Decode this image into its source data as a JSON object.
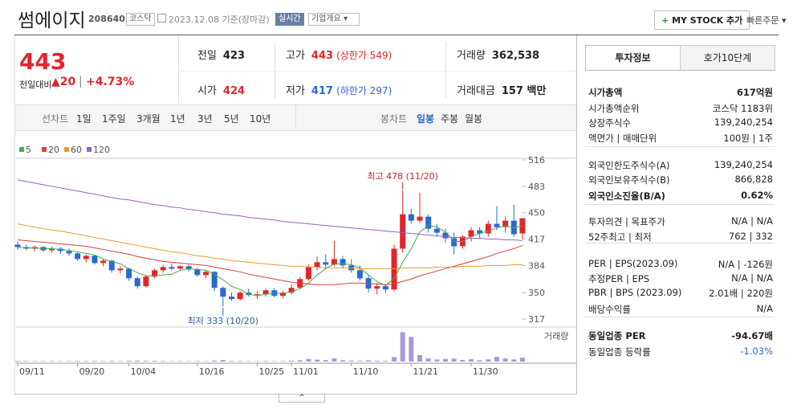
{
  "header": {
    "name": "썸에이지",
    "code": "208640",
    "market": "코스닥",
    "date": "2023.12.08 기준(장마감)",
    "realtime": "실시간",
    "overview": "기업개요",
    "mystock": "MY STOCK 추가",
    "quick_order": "빠른주문"
  },
  "price": {
    "current": "443",
    "change_label": "전일대비",
    "change": "20",
    "change_pct": "+4.73%"
  },
  "quotes": [
    [
      {
        "label": "전일",
        "value": "423"
      },
      {
        "label": "고가",
        "value": "443",
        "note": "(상한가 549)"
      },
      {
        "label": "거래량",
        "value": "362,538"
      }
    ],
    [
      {
        "label": "시가",
        "value": "424"
      },
      {
        "label": "저가",
        "value": "417",
        "note": "(하한가 297)"
      },
      {
        "label": "거래대금",
        "value": "157 백만"
      }
    ]
  ],
  "periods": {
    "line": [
      "선차트",
      "1일",
      "1주일",
      "3개월",
      "1년",
      "3년",
      "5년",
      "10년"
    ],
    "candle": [
      "봉차트",
      "일봉",
      "주봉",
      "월봉"
    ]
  },
  "chart": {
    "type": "candlestick",
    "up_color": "#e0262c",
    "down_color": "#2a68d2",
    "volume_color": "#a99ad6",
    "volume_label": "거래량",
    "high_note": "최고 478 (11/20)",
    "low_note": "최저 333 (10/20)",
    "ylim": [
      310,
      522
    ],
    "yticks": [
      516,
      483,
      450,
      417,
      384,
      350,
      317
    ],
    "vlim": [
      0,
      3000000
    ],
    "categories": [
      "09/11",
      null,
      null,
      null,
      null,
      null,
      null,
      "09/20",
      null,
      null,
      null,
      null,
      null,
      "10/04",
      null,
      null,
      null,
      null,
      null,
      null,
      null,
      "10/16",
      null,
      null,
      null,
      null,
      null,
      null,
      "10/25",
      null,
      null,
      null,
      "11/01",
      null,
      null,
      null,
      null,
      null,
      null,
      "11/10",
      null,
      null,
      null,
      null,
      null,
      null,
      "11/21",
      null,
      null,
      null,
      null,
      null,
      null,
      "11/30",
      null,
      null,
      null,
      null,
      null,
      null
    ],
    "open": [
      410,
      407,
      405,
      407,
      403,
      405,
      402,
      399,
      392,
      396,
      387,
      390,
      378,
      380,
      368,
      358,
      370,
      378,
      382,
      380,
      383,
      379,
      372,
      376,
      356,
      345,
      342,
      350,
      347,
      348,
      353,
      346,
      350,
      356,
      367,
      382,
      388,
      385,
      392,
      384,
      378,
      368,
      355,
      358,
      354,
      405,
      448,
      440,
      445,
      430,
      425,
      418,
      408,
      420,
      428,
      424,
      436,
      432,
      440,
      424
    ],
    "high": [
      414,
      410,
      409,
      408,
      408,
      407,
      405,
      401,
      398,
      397,
      392,
      391,
      383,
      381,
      370,
      372,
      380,
      385,
      386,
      384,
      385,
      381,
      378,
      377,
      358,
      350,
      352,
      355,
      352,
      355,
      356,
      352,
      360,
      370,
      385,
      395,
      398,
      415,
      396,
      392,
      384,
      372,
      362,
      360,
      410,
      478,
      455,
      475,
      448,
      436,
      430,
      425,
      422,
      432,
      432,
      440,
      458,
      445,
      460,
      443
    ],
    "low": [
      404,
      403,
      402,
      401,
      400,
      398,
      396,
      390,
      388,
      385,
      383,
      375,
      374,
      365,
      355,
      356,
      368,
      375,
      378,
      377,
      376,
      370,
      368,
      352,
      333,
      340,
      340,
      345,
      342,
      345,
      344,
      343,
      348,
      354,
      365,
      378,
      380,
      383,
      380,
      375,
      365,
      350,
      348,
      350,
      352,
      400,
      436,
      437,
      425,
      420,
      412,
      398,
      405,
      414,
      418,
      420,
      428,
      425,
      420,
      417
    ],
    "close": [
      407,
      405,
      407,
      403,
      405,
      402,
      399,
      392,
      396,
      387,
      390,
      378,
      380,
      368,
      358,
      370,
      378,
      382,
      380,
      383,
      379,
      372,
      376,
      356,
      345,
      342,
      350,
      347,
      348,
      353,
      346,
      350,
      356,
      367,
      382,
      388,
      385,
      392,
      384,
      378,
      368,
      355,
      358,
      354,
      405,
      448,
      440,
      445,
      430,
      425,
      418,
      408,
      420,
      428,
      424,
      436,
      432,
      440,
      423,
      443
    ],
    "volume": [
      60000,
      50000,
      40000,
      45000,
      50000,
      40000,
      45000,
      60000,
      50000,
      55000,
      50000,
      70000,
      45000,
      80000,
      90000,
      60000,
      70000,
      50000,
      40000,
      45000,
      40000,
      50000,
      45000,
      90000,
      150000,
      60000,
      50000,
      45000,
      40000,
      50000,
      45000,
      50000,
      80000,
      120000,
      250000,
      180000,
      140000,
      300000,
      120000,
      90000,
      80000,
      110000,
      70000,
      60000,
      420000,
      2750000,
      2300000,
      600000,
      300000,
      200000,
      250000,
      280000,
      150000,
      220000,
      120000,
      200000,
      450000,
      300000,
      200000,
      362538
    ],
    "series": [
      {
        "name": "5",
        "color": "#3cb043",
        "values": [
          407,
          406,
          406,
          405,
          405,
          404,
          403,
          401,
          399,
          397,
          392,
          389,
          386,
          380,
          375,
          371,
          371,
          372,
          373,
          378,
          380,
          379,
          378,
          373,
          366,
          358,
          354,
          348,
          346,
          348,
          349,
          349,
          351,
          355,
          362,
          372,
          380,
          386,
          386,
          385,
          381,
          372,
          364,
          359,
          368,
          388,
          405,
          426,
          434,
          432,
          426,
          414,
          414,
          420,
          424,
          427,
          431,
          434,
          431,
          434
        ]
      },
      {
        "name": "20",
        "color": "#e03b3b",
        "values": [
          416,
          415,
          414,
          413,
          412,
          411,
          410,
          409,
          408,
          406,
          404,
          402,
          400,
          398,
          395,
          393,
          391,
          389,
          388,
          387,
          386,
          385,
          384,
          382,
          380,
          378,
          376,
          373,
          371,
          369,
          367,
          365,
          363,
          362,
          361,
          360,
          360,
          360,
          361,
          362,
          362,
          361,
          361,
          360,
          361,
          364,
          367,
          371,
          374,
          377,
          380,
          383,
          386,
          389,
          392,
          395,
          399,
          402,
          405,
          409
        ]
      },
      {
        "name": "60",
        "color": "#f0962e",
        "values": [
          436,
          434,
          432,
          430,
          428,
          427,
          425,
          423,
          421,
          419,
          417,
          415,
          413,
          411,
          409,
          407,
          405,
          403,
          401,
          400,
          398,
          396,
          395,
          393,
          392,
          390,
          389,
          388,
          387,
          386,
          385,
          384,
          383,
          383,
          382,
          382,
          381,
          381,
          381,
          381,
          380,
          380,
          380,
          380,
          380,
          381,
          381,
          381,
          381,
          382,
          382,
          382,
          383,
          383,
          383,
          384,
          384,
          384,
          385,
          385
        ]
      },
      {
        "name": "120",
        "color": "#9b5fc0",
        "values": [
          491,
          489,
          487,
          485,
          483,
          481,
          479,
          477,
          475,
          473,
          471,
          469,
          467,
          466,
          464,
          462,
          460,
          459,
          457,
          456,
          454,
          453,
          451,
          450,
          448,
          447,
          446,
          444,
          443,
          442,
          441,
          439,
          438,
          437,
          436,
          435,
          434,
          433,
          432,
          431,
          430,
          429,
          428,
          427,
          426,
          425,
          424,
          423,
          422,
          421,
          420,
          419,
          419,
          418,
          418,
          417,
          417,
          416,
          416,
          415
        ]
      }
    ]
  },
  "info": {
    "tabs": [
      "투자정보",
      "호가10단계"
    ],
    "groups": [
      [
        {
          "label": "시가총액",
          "value": "617억원"
        },
        {
          "label": "시가총액순위",
          "value": "코스닥 1183위"
        },
        {
          "label": "상장주식수",
          "value": "139,240,254"
        },
        {
          "label": "액면가 | 매매단위",
          "value": "100원 | 1주"
        }
      ],
      [
        {
          "label": "외국인한도주식수(A)",
          "value": "139,240,254"
        },
        {
          "label": "외국인보유주식수(B)",
          "value": "866,828"
        },
        {
          "label": "외국인소진율(B/A)",
          "value": "0.62%"
        }
      ],
      [
        {
          "label": "투자의견 | 목표주가",
          "value": "N/A | N/A"
        },
        {
          "label": "52주최고 | 최저",
          "value": "762 | 332"
        }
      ],
      [
        {
          "label": "PER | EPS(2023.09)",
          "value": "N/A | -126원"
        },
        {
          "label": "추정PER | EPS",
          "value": "N/A | N/A"
        },
        {
          "label": "PBR | BPS (2023.09)",
          "value": "2.01배 | 220원"
        },
        {
          "label": "배당수익률",
          "value": "N/A"
        }
      ],
      [
        {
          "label": "동일업종 PER",
          "value": "-94.67배"
        },
        {
          "label": "동일업종 등락률",
          "value": "-1.03%"
        }
      ]
    ]
  }
}
